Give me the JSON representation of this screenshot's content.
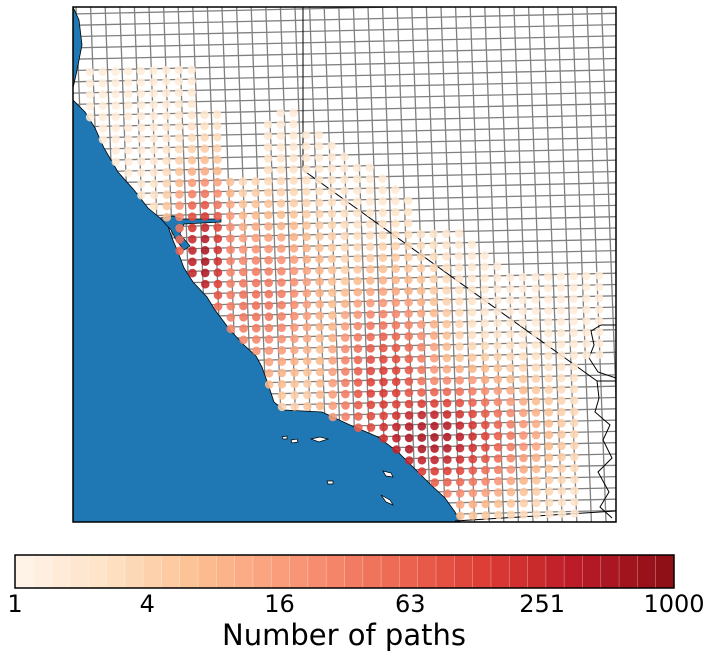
{
  "colors": {
    "ocean": "#1f77b4",
    "land": "#ffffff",
    "grid_line": "#808080",
    "border_line": "#000000",
    "cmap": [
      "#fff5eb",
      "#fee1c4",
      "#fcbd8f",
      "#f99677",
      "#ee6b55",
      "#dc3c34",
      "#b81a26",
      "#8c0f17"
    ]
  },
  "colorbar": {
    "label": "Number of paths",
    "scale": "log",
    "range": [
      1,
      1000
    ],
    "ticks": [
      {
        "value": 1,
        "label": "1"
      },
      {
        "value": 4,
        "label": "4"
      },
      {
        "value": 16,
        "label": "16"
      },
      {
        "value": 63,
        "label": "63"
      },
      {
        "value": 251,
        "label": "251"
      },
      {
        "value": 1000,
        "label": "1000"
      }
    ],
    "segments": 36
  }
}
